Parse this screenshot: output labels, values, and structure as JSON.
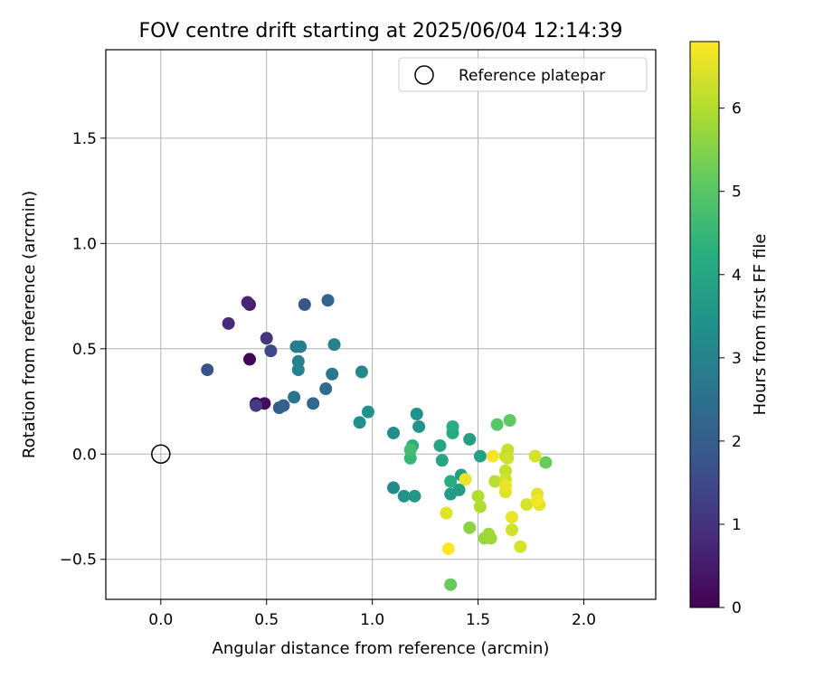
{
  "chart_data": {
    "type": "scatter",
    "title": "FOV centre drift starting at 2025/06/04 12:14:39",
    "xlabel": "Angular distance from reference (arcmin)",
    "ylabel": "Rotation from reference (arcmin)",
    "xlim": [
      -0.26,
      2.34
    ],
    "ylim": [
      -0.69,
      1.92
    ],
    "xticks": [
      0.0,
      0.5,
      1.0,
      1.5,
      2.0
    ],
    "xtick_labels": [
      "0.0",
      "0.5",
      "1.0",
      "1.5",
      "2.0"
    ],
    "yticks": [
      -0.5,
      0.0,
      0.5,
      1.0,
      1.5
    ],
    "ytick_labels": [
      "−0.5",
      "0.0",
      "0.5",
      "1.0",
      "1.5"
    ],
    "grid": true,
    "legend": {
      "placement": "top-right",
      "entries": [
        "Reference platepar"
      ]
    },
    "reference_point": {
      "x": 0.0,
      "y": 0.0
    },
    "colorbar": {
      "label": "Hours from first FF file",
      "colormap": "viridis",
      "range": [
        0,
        6.8
      ],
      "ticks": [
        0,
        1,
        2,
        3,
        4,
        5,
        6
      ],
      "tick_labels": [
        "0",
        "1",
        "2",
        "3",
        "4",
        "5",
        "6"
      ]
    },
    "points": [
      {
        "x": 0.45,
        "y": 0.24,
        "c": 0.0
      },
      {
        "x": 0.42,
        "y": 0.45,
        "c": 0.1
      },
      {
        "x": 0.49,
        "y": 0.24,
        "c": 0.2
      },
      {
        "x": 0.42,
        "y": 0.71,
        "c": 0.5
      },
      {
        "x": 0.41,
        "y": 0.72,
        "c": 0.7
      },
      {
        "x": 0.32,
        "y": 0.62,
        "c": 0.8
      },
      {
        "x": 0.5,
        "y": 0.55,
        "c": 1.0
      },
      {
        "x": 0.45,
        "y": 0.23,
        "c": 1.2
      },
      {
        "x": 0.52,
        "y": 0.49,
        "c": 1.5
      },
      {
        "x": 0.22,
        "y": 0.4,
        "c": 1.7
      },
      {
        "x": 0.68,
        "y": 0.71,
        "c": 1.8
      },
      {
        "x": 0.56,
        "y": 0.22,
        "c": 2.0
      },
      {
        "x": 0.58,
        "y": 0.23,
        "c": 2.1
      },
      {
        "x": 0.79,
        "y": 0.73,
        "c": 2.2
      },
      {
        "x": 0.72,
        "y": 0.24,
        "c": 2.3
      },
      {
        "x": 0.78,
        "y": 0.31,
        "c": 2.4
      },
      {
        "x": 0.63,
        "y": 0.27,
        "c": 2.6
      },
      {
        "x": 0.81,
        "y": 0.38,
        "c": 2.7
      },
      {
        "x": 0.64,
        "y": 0.51,
        "c": 2.8
      },
      {
        "x": 0.66,
        "y": 0.51,
        "c": 2.9
      },
      {
        "x": 0.65,
        "y": 0.44,
        "c": 2.95
      },
      {
        "x": 0.65,
        "y": 0.4,
        "c": 3.0
      },
      {
        "x": 0.82,
        "y": 0.52,
        "c": 3.0
      },
      {
        "x": 0.95,
        "y": 0.39,
        "c": 3.1
      },
      {
        "x": 1.1,
        "y": -0.16,
        "c": 3.2
      },
      {
        "x": 1.1,
        "y": 0.1,
        "c": 3.3
      },
      {
        "x": 0.98,
        "y": 0.2,
        "c": 3.4
      },
      {
        "x": 0.94,
        "y": 0.15,
        "c": 3.4
      },
      {
        "x": 1.21,
        "y": 0.19,
        "c": 3.4
      },
      {
        "x": 1.22,
        "y": 0.13,
        "c": 3.5
      },
      {
        "x": 1.15,
        "y": -0.2,
        "c": 3.5
      },
      {
        "x": 1.2,
        "y": -0.2,
        "c": 3.6
      },
      {
        "x": 1.37,
        "y": -0.19,
        "c": 3.7
      },
      {
        "x": 1.41,
        "y": -0.17,
        "c": 3.75
      },
      {
        "x": 1.42,
        "y": -0.1,
        "c": 3.8
      },
      {
        "x": 1.46,
        "y": 0.07,
        "c": 3.8
      },
      {
        "x": 1.51,
        "y": -0.01,
        "c": 3.9
      },
      {
        "x": 1.32,
        "y": 0.04,
        "c": 4.0
      },
      {
        "x": 1.33,
        "y": -0.03,
        "c": 4.0
      },
      {
        "x": 1.38,
        "y": 0.1,
        "c": 4.1
      },
      {
        "x": 1.38,
        "y": 0.13,
        "c": 4.2
      },
      {
        "x": 1.37,
        "y": -0.13,
        "c": 4.2
      },
      {
        "x": 1.19,
        "y": 0.04,
        "c": 4.3
      },
      {
        "x": 1.18,
        "y": -0.02,
        "c": 4.5
      },
      {
        "x": 1.18,
        "y": 0.02,
        "c": 4.7
      },
      {
        "x": 1.59,
        "y": 0.14,
        "c": 5.0
      },
      {
        "x": 1.65,
        "y": 0.16,
        "c": 5.1
      },
      {
        "x": 1.37,
        "y": -0.62,
        "c": 5.2
      },
      {
        "x": 1.82,
        "y": -0.04,
        "c": 5.2
      },
      {
        "x": 1.46,
        "y": -0.35,
        "c": 5.6
      },
      {
        "x": 1.53,
        "y": -0.4,
        "c": 5.7
      },
      {
        "x": 1.56,
        "y": -0.4,
        "c": 5.75
      },
      {
        "x": 1.55,
        "y": -0.38,
        "c": 5.8
      },
      {
        "x": 1.5,
        "y": -0.2,
        "c": 6.0
      },
      {
        "x": 1.51,
        "y": -0.25,
        "c": 6.0
      },
      {
        "x": 1.58,
        "y": -0.13,
        "c": 6.1
      },
      {
        "x": 1.63,
        "y": -0.01,
        "c": 6.2
      },
      {
        "x": 1.64,
        "y": 0.02,
        "c": 6.2
      },
      {
        "x": 1.63,
        "y": -0.08,
        "c": 6.2
      },
      {
        "x": 1.64,
        "y": -0.02,
        "c": 6.3
      },
      {
        "x": 1.63,
        "y": -0.12,
        "c": 6.3
      },
      {
        "x": 1.66,
        "y": -0.36,
        "c": 6.3
      },
      {
        "x": 1.7,
        "y": -0.44,
        "c": 6.4
      },
      {
        "x": 1.73,
        "y": -0.24,
        "c": 6.4
      },
      {
        "x": 1.77,
        "y": -0.01,
        "c": 6.4
      },
      {
        "x": 1.78,
        "y": -0.19,
        "c": 6.5
      },
      {
        "x": 1.79,
        "y": -0.24,
        "c": 6.5
      },
      {
        "x": 1.35,
        "y": -0.28,
        "c": 6.5
      },
      {
        "x": 1.63,
        "y": -0.18,
        "c": 6.5
      },
      {
        "x": 1.66,
        "y": -0.3,
        "c": 6.6
      },
      {
        "x": 1.44,
        "y": -0.12,
        "c": 6.6
      },
      {
        "x": 1.63,
        "y": -0.15,
        "c": 6.6
      },
      {
        "x": 1.78,
        "y": -0.22,
        "c": 6.7
      },
      {
        "x": 1.57,
        "y": -0.01,
        "c": 6.7
      },
      {
        "x": 1.36,
        "y": -0.45,
        "c": 6.8
      }
    ]
  }
}
